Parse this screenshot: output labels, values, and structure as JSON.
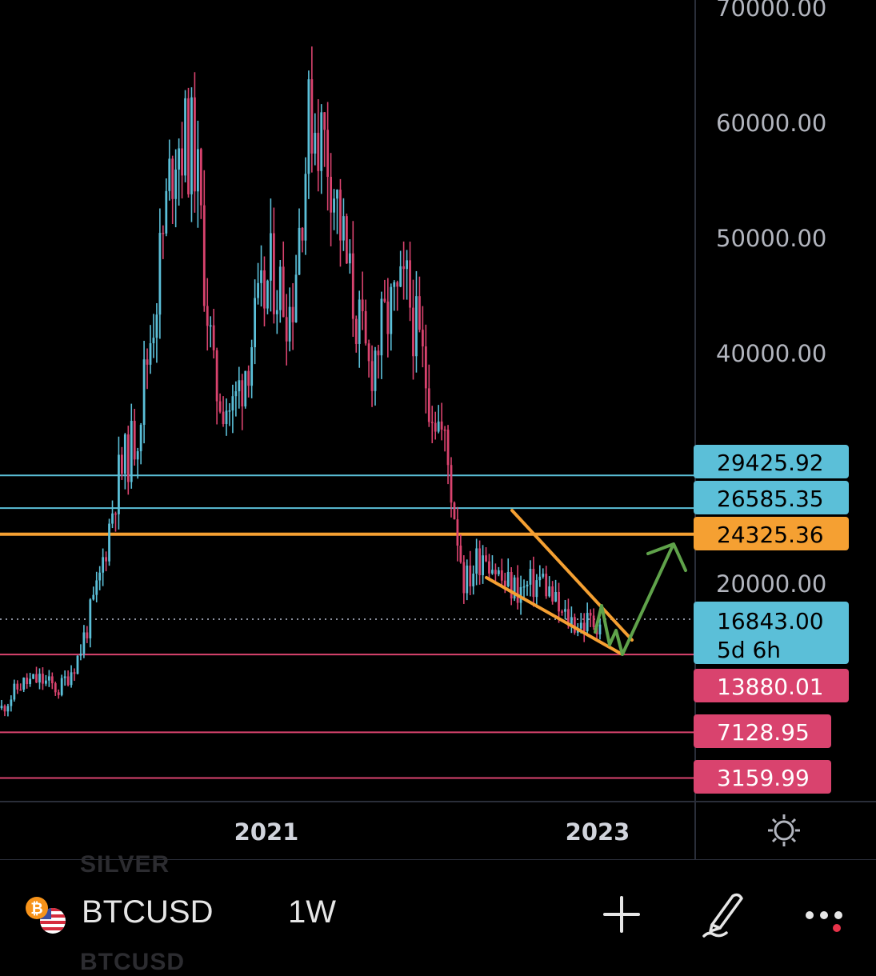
{
  "chart_data": {
    "type": "candlestick",
    "symbol": "BTCUSD",
    "interval": "1W",
    "x": [
      "2020-06",
      "2020-07",
      "2020-08",
      "2020-09",
      "2020-10",
      "2020-11",
      "2020-12",
      "2021-01",
      "2021-02",
      "2021-03",
      "2021-04",
      "2021-05",
      "2021-06",
      "2021-07",
      "2021-08",
      "2021-09",
      "2021-10",
      "2021-11",
      "2021-12",
      "2022-01",
      "2022-02",
      "2022-03",
      "2022-04",
      "2022-05",
      "2022-06",
      "2022-07",
      "2022-08",
      "2022-09",
      "2022-10",
      "2022-11",
      "2022-12",
      "2023-01"
    ],
    "close": [
      9200,
      11300,
      11700,
      10800,
      13800,
      19700,
      29000,
      33100,
      45200,
      58900,
      57700,
      37300,
      35000,
      41500,
      47100,
      43800,
      61300,
      57000,
      46300,
      38500,
      43200,
      45500,
      37700,
      31800,
      19900,
      23300,
      20000,
      19400,
      20500,
      17200,
      16500,
      16843
    ],
    "x_tick_labels": [
      "2021",
      "2023"
    ],
    "y_tick_labels": [
      "70000.00",
      "60000.00",
      "50000.00",
      "40000.00",
      "20000.00"
    ],
    "ylim": [
      5000,
      70000
    ],
    "up_color": "#5bbfd8",
    "down_color": "#d9436e",
    "horizontal_levels": [
      {
        "price": 29425.92,
        "label": "29425.92",
        "color": "#5bbfd8"
      },
      {
        "price": 26585.35,
        "label": "26585.35",
        "color": "#5bbfd8"
      },
      {
        "price": 24325.36,
        "label": "24325.36",
        "color": "#f5a032"
      },
      {
        "price": 13880.01,
        "label": "13880.01",
        "color": "#d9436e"
      },
      {
        "price": 7128.95,
        "label": "7128.95",
        "color": "#d9436e"
      },
      {
        "price": 3159.99,
        "label": "3159.99",
        "color": "#d9436e"
      }
    ],
    "last_price": {
      "price": 16843.0,
      "label": "16843.00",
      "countdown": "5d 6h",
      "color": "#5bbfd8"
    },
    "annotations": [
      {
        "type": "falling-wedge",
        "color": "#f5a032"
      },
      {
        "type": "projection-arrow",
        "color": "#5fa24a"
      }
    ]
  },
  "toolbar": {
    "symbol": "BTCUSD",
    "interval": "1W",
    "ghost_top": "SILVER",
    "ghost_bottom": "BTCUSD"
  },
  "icons": [
    "bitcoin-icon",
    "us-flag-icon",
    "plus-icon",
    "pencil-icon",
    "more-icon",
    "settings-icon"
  ]
}
